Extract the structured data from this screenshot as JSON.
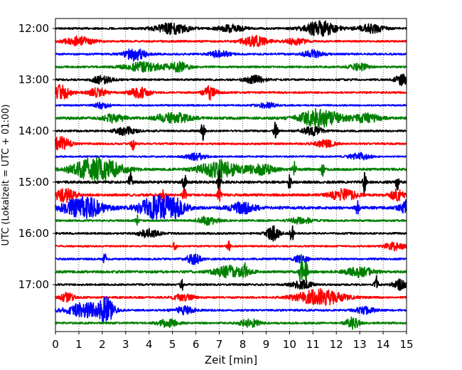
{
  "chart_data": {
    "type": "line",
    "title": "",
    "xlabel": "Zeit  [min]",
    "ylabel": "UTC (Lokalzeit = UTC + 01:00)",
    "xlim": [
      0,
      15
    ],
    "x_ticks": [
      0,
      1,
      2,
      3,
      4,
      5,
      6,
      7,
      8,
      9,
      10,
      11,
      12,
      13,
      14,
      15
    ],
    "x_tick_labels": [
      "0",
      "1",
      "2",
      "3",
      "4",
      "5",
      "6",
      "7",
      "8",
      "9",
      "10",
      "11",
      "12",
      "13",
      "14",
      "15"
    ],
    "y_tick_labels": [
      "12:00",
      "13:00",
      "14:00",
      "15:00",
      "16:00",
      "17:00"
    ],
    "y_tick_rows": [
      0,
      4,
      8,
      12,
      16,
      20
    ],
    "grid": {
      "x_dotted": true,
      "y": false
    },
    "trace_interval_minutes": 15,
    "trace_color_cycle": [
      "#000000",
      "#ff0000",
      "#0000ff",
      "#008000"
    ],
    "traces": [
      {
        "start": "12:00",
        "noise": 0.6,
        "events": [
          [
            5,
            0.5,
            1.6
          ],
          [
            11.3,
            0.5,
            2.2
          ],
          [
            13.5,
            0.4,
            1.2
          ],
          [
            7.5,
            0.4,
            1.0
          ]
        ]
      },
      {
        "start": "12:15",
        "noise": 0.6,
        "events": [
          [
            1.0,
            0.4,
            1.4
          ],
          [
            8.5,
            0.4,
            1.5
          ],
          [
            10.3,
            0.3,
            1.0
          ]
        ]
      },
      {
        "start": "12:30",
        "noise": 0.6,
        "events": [
          [
            3.4,
            0.3,
            2.0
          ],
          [
            7.0,
            0.3,
            1.0
          ],
          [
            11.0,
            0.3,
            1.0
          ]
        ]
      },
      {
        "start": "12:45",
        "noise": 0.6,
        "events": [
          [
            3.8,
            0.6,
            1.3
          ],
          [
            5.3,
            0.3,
            1.3
          ],
          [
            13.0,
            0.3,
            1.0
          ]
        ]
      },
      {
        "start": "13:00",
        "noise": 0.6,
        "events": [
          [
            2.0,
            0.3,
            1.1
          ],
          [
            8.5,
            0.3,
            1.1
          ],
          [
            14.8,
            0.2,
            1.5
          ]
        ]
      },
      {
        "start": "13:15",
        "noise": 0.6,
        "events": [
          [
            0.2,
            0.3,
            2.2
          ],
          [
            3.6,
            0.3,
            1.5
          ],
          [
            6.6,
            0.2,
            2.0
          ],
          [
            1.8,
            0.3,
            1.2
          ]
        ]
      },
      {
        "start": "13:30",
        "noise": 0.5,
        "events": [
          [
            2.0,
            0.2,
            1.0
          ],
          [
            9.0,
            0.3,
            0.8
          ]
        ]
      },
      {
        "start": "13:45",
        "noise": 0.8,
        "events": [
          [
            5.0,
            0.5,
            1.6
          ],
          [
            11.3,
            0.6,
            2.6
          ],
          [
            2.5,
            0.3,
            1.2
          ],
          [
            13.3,
            0.4,
            1.2
          ]
        ]
      },
      {
        "start": "14:00",
        "noise": 0.6,
        "events": [
          [
            6.3,
            0.05,
            2.8
          ],
          [
            9.4,
            0.06,
            3.3
          ],
          [
            3.0,
            0.3,
            1.2
          ],
          [
            11.0,
            0.3,
            1.2
          ]
        ]
      },
      {
        "start": "14:15",
        "noise": 0.6,
        "events": [
          [
            0.2,
            0.3,
            2.0
          ],
          [
            3.3,
            0.05,
            2.0
          ],
          [
            11.5,
            0.3,
            1.0
          ]
        ]
      },
      {
        "start": "14:30",
        "noise": 0.5,
        "events": [
          [
            6.0,
            0.3,
            1.0
          ],
          [
            13.0,
            0.3,
            1.0
          ]
        ]
      },
      {
        "start": "14:45",
        "noise": 0.8,
        "events": [
          [
            1.8,
            0.7,
            3.5
          ],
          [
            7.0,
            0.6,
            2.6
          ],
          [
            10.2,
            0.05,
            2.0
          ],
          [
            11.4,
            0.05,
            2.0
          ],
          [
            8.8,
            0.4,
            1.4
          ]
        ]
      },
      {
        "start": "15:00",
        "noise": 0.8,
        "events": [
          [
            5.5,
            0.05,
            3.5
          ],
          [
            7.0,
            0.05,
            3.2
          ],
          [
            13.2,
            0.05,
            3.2
          ],
          [
            14.6,
            0.05,
            2.6
          ],
          [
            3.2,
            0.05,
            3.0
          ],
          [
            10.0,
            0.05,
            2.0
          ]
        ]
      },
      {
        "start": "15:15",
        "noise": 0.8,
        "events": [
          [
            0.4,
            0.3,
            2.0
          ],
          [
            4.6,
            0.05,
            3.0
          ],
          [
            5.5,
            0.05,
            2.8
          ],
          [
            7.0,
            0.05,
            2.0
          ],
          [
            12.3,
            0.4,
            1.6
          ],
          [
            14.6,
            0.2,
            1.6
          ]
        ]
      },
      {
        "start": "15:30",
        "noise": 0.9,
        "events": [
          [
            1.2,
            0.6,
            3.0
          ],
          [
            4.2,
            0.5,
            2.8
          ],
          [
            5.0,
            0.4,
            2.5
          ],
          [
            12.9,
            0.05,
            2.0
          ],
          [
            15.0,
            0.2,
            2.0
          ],
          [
            8.0,
            0.4,
            1.5
          ]
        ]
      },
      {
        "start": "15:45",
        "noise": 0.6,
        "events": [
          [
            3.5,
            0.05,
            1.5
          ],
          [
            6.5,
            0.3,
            1.1
          ],
          [
            10.5,
            0.3,
            1.0
          ]
        ]
      },
      {
        "start": "16:00",
        "noise": 0.6,
        "events": [
          [
            9.3,
            0.2,
            2.0
          ],
          [
            10.1,
            0.05,
            2.6
          ],
          [
            4.0,
            0.3,
            1.2
          ]
        ]
      },
      {
        "start": "16:15",
        "noise": 0.5,
        "events": [
          [
            5.1,
            0.05,
            1.6
          ],
          [
            7.4,
            0.05,
            1.5
          ],
          [
            14.5,
            0.3,
            1.2
          ]
        ]
      },
      {
        "start": "16:30",
        "noise": 0.6,
        "events": [
          [
            2.1,
            0.05,
            2.0
          ],
          [
            5.9,
            0.2,
            1.8
          ],
          [
            10.5,
            0.2,
            1.2
          ]
        ]
      },
      {
        "start": "16:45",
        "noise": 0.8,
        "events": [
          [
            8.1,
            0.05,
            2.8
          ],
          [
            10.5,
            0.05,
            5.5
          ],
          [
            10.7,
            0.05,
            4.0
          ],
          [
            7.5,
            0.5,
            1.6
          ],
          [
            13.0,
            0.4,
            1.4
          ]
        ]
      },
      {
        "start": "17:00",
        "noise": 0.6,
        "events": [
          [
            5.4,
            0.05,
            1.6
          ],
          [
            13.7,
            0.05,
            3.0
          ],
          [
            14.7,
            0.2,
            1.4
          ],
          [
            10.5,
            0.3,
            1.2
          ]
        ]
      },
      {
        "start": "17:15",
        "noise": 0.6,
        "events": [
          [
            11.3,
            0.7,
            2.3
          ],
          [
            0.5,
            0.2,
            1.3
          ],
          [
            5.5,
            0.3,
            1.0
          ]
        ]
      },
      {
        "start": "17:30",
        "noise": 0.6,
        "events": [
          [
            1.3,
            0.6,
            2.2
          ],
          [
            2.2,
            0.2,
            3.3
          ],
          [
            5.5,
            0.3,
            1.1
          ],
          [
            13.2,
            0.3,
            1.0
          ]
        ]
      },
      {
        "start": "17:45",
        "noise": 0.6,
        "events": [
          [
            12.7,
            0.2,
            1.6
          ],
          [
            4.8,
            0.3,
            1.1
          ],
          [
            8.3,
            0.3,
            1.1
          ]
        ]
      }
    ]
  }
}
